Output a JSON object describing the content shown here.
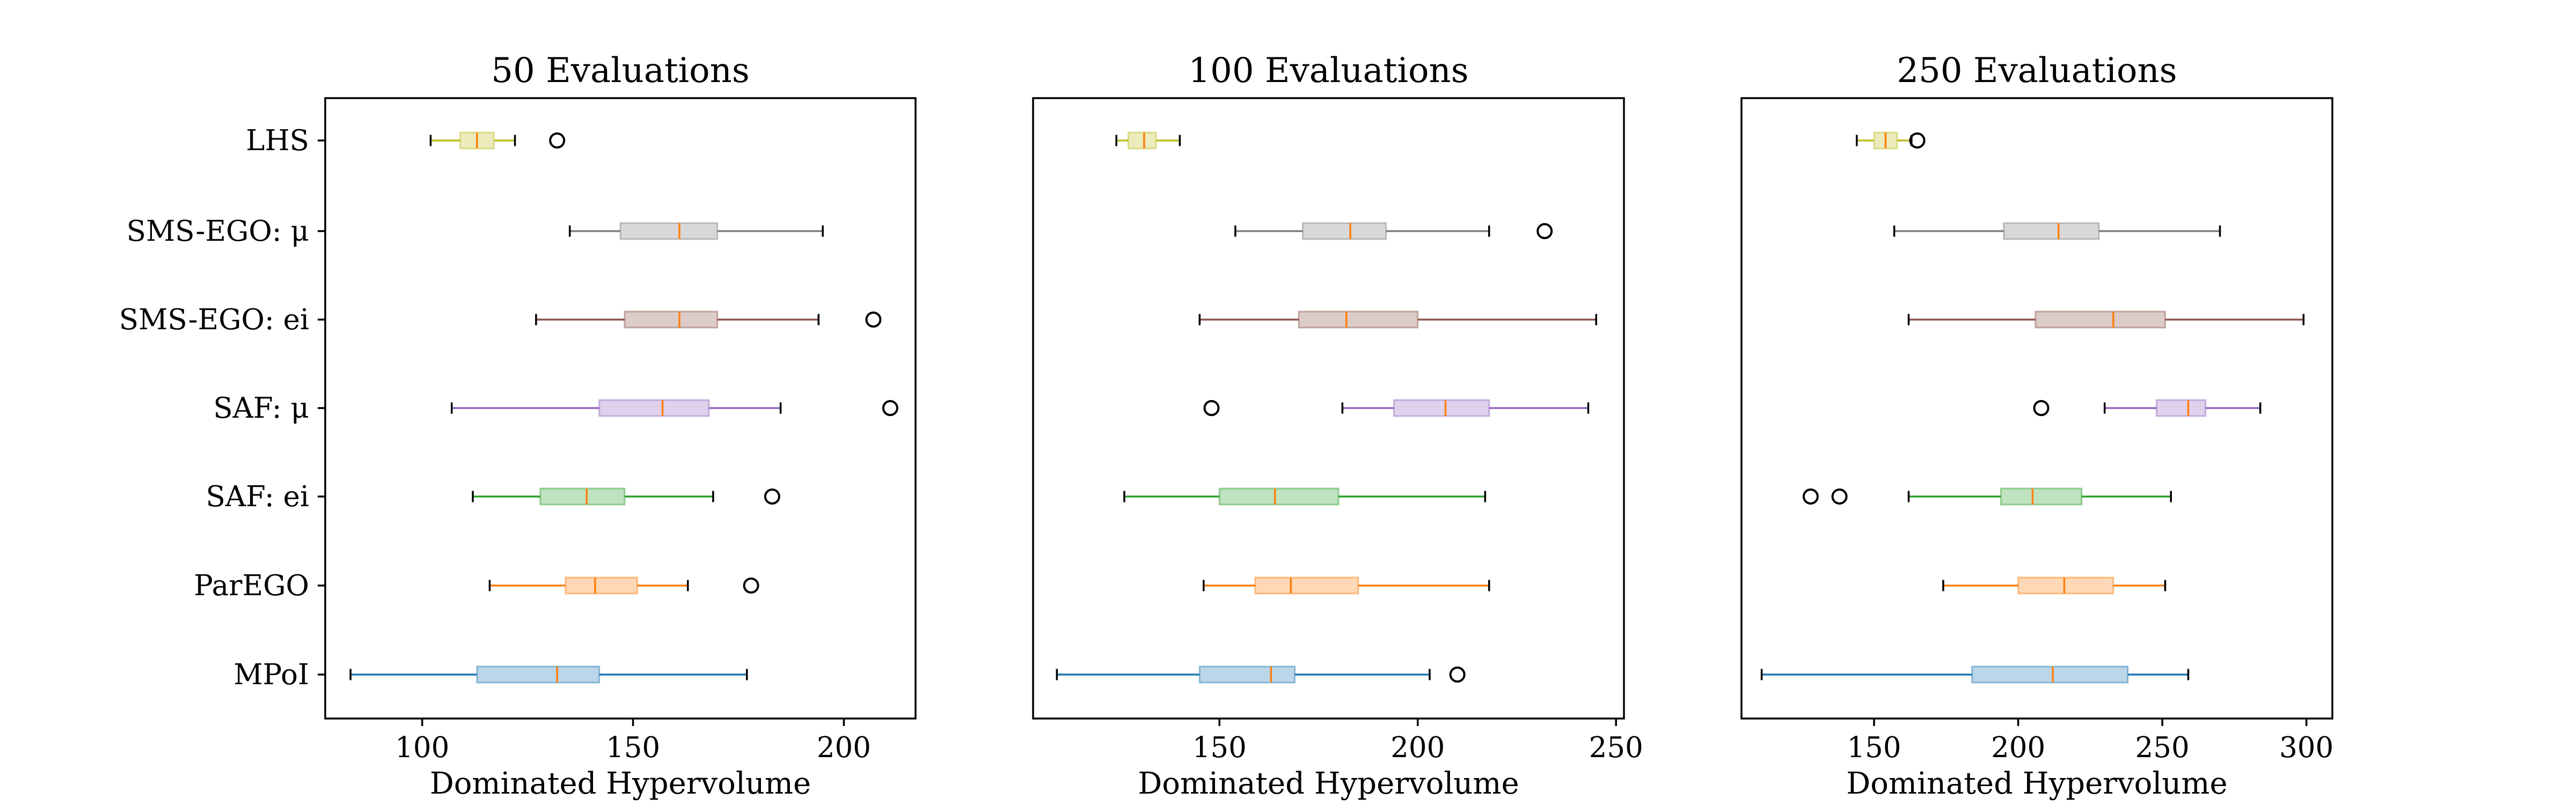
{
  "chart_data": [
    {
      "type": "boxplot",
      "title": "50 Evaluations",
      "xlabel": "Dominated Hypervolume",
      "xlim": [
        77,
        217
      ],
      "xticks": [
        "100",
        "150",
        "200"
      ],
      "xtick_values": [
        100,
        150,
        200
      ],
      "categories": [
        "LHS",
        "SMS-EGO: μ",
        "SMS-EGO: ei",
        "SAF: μ",
        "SAF: ei",
        "ParEGO",
        "MPoI"
      ],
      "boxes": [
        {
          "name": "LHS",
          "whislo": 102,
          "q1": 109,
          "med": 113,
          "q3": 117,
          "whishi": 122,
          "fliers": [
            132
          ]
        },
        {
          "name": "SMS-EGO: μ",
          "whislo": 135,
          "q1": 147,
          "med": 161,
          "q3": 170,
          "whishi": 195,
          "fliers": []
        },
        {
          "name": "SMS-EGO: ei",
          "whislo": 127,
          "q1": 148,
          "med": 161,
          "q3": 170,
          "whishi": 194,
          "fliers": [
            207
          ]
        },
        {
          "name": "SAF: μ",
          "whislo": 107,
          "q1": 142,
          "med": 157,
          "q3": 168,
          "whishi": 185,
          "fliers": [
            211
          ]
        },
        {
          "name": "SAF: ei",
          "whislo": 112,
          "q1": 128,
          "med": 139,
          "q3": 148,
          "whishi": 169,
          "fliers": [
            183
          ]
        },
        {
          "name": "ParEGO",
          "whislo": 116,
          "q1": 134,
          "med": 141,
          "q3": 151,
          "whishi": 163,
          "fliers": [
            178
          ]
        },
        {
          "name": "MPoI",
          "whislo": 83,
          "q1": 113,
          "med": 132,
          "q3": 142,
          "whishi": 177,
          "fliers": []
        }
      ]
    },
    {
      "type": "boxplot",
      "title": "100 Evaluations",
      "xlabel": "Dominated Hypervolume",
      "xlim": [
        103,
        252
      ],
      "xticks": [
        "150",
        "200",
        "250"
      ],
      "xtick_values": [
        150,
        200,
        250
      ],
      "categories": [
        "LHS",
        "SMS-EGO: μ",
        "SMS-EGO: ei",
        "SAF: μ",
        "SAF: ei",
        "ParEGO",
        "MPoI"
      ],
      "boxes": [
        {
          "name": "LHS",
          "whislo": 124,
          "q1": 127,
          "med": 131,
          "q3": 134,
          "whishi": 140,
          "fliers": []
        },
        {
          "name": "SMS-EGO: μ",
          "whislo": 154,
          "q1": 171,
          "med": 183,
          "q3": 192,
          "whishi": 218,
          "fliers": [
            232
          ]
        },
        {
          "name": "SMS-EGO: ei",
          "whislo": 145,
          "q1": 170,
          "med": 182,
          "q3": 200,
          "whishi": 245,
          "fliers": []
        },
        {
          "name": "SAF: μ",
          "whislo": 181,
          "q1": 194,
          "med": 207,
          "q3": 218,
          "whishi": 243,
          "fliers": [
            148
          ]
        },
        {
          "name": "SAF: ei",
          "whislo": 126,
          "q1": 150,
          "med": 164,
          "q3": 180,
          "whishi": 217,
          "fliers": []
        },
        {
          "name": "ParEGO",
          "whislo": 146,
          "q1": 159,
          "med": 168,
          "q3": 185,
          "whishi": 218,
          "fliers": []
        },
        {
          "name": "MPoI",
          "whislo": 109,
          "q1": 145,
          "med": 163,
          "q3": 169,
          "whishi": 203,
          "fliers": [
            210
          ]
        }
      ]
    },
    {
      "type": "boxplot",
      "title": "250 Evaluations",
      "xlabel": "Dominated Hypervolume",
      "xlim": [
        104,
        309
      ],
      "xticks": [
        "150",
        "200",
        "250",
        "300"
      ],
      "xtick_values": [
        150,
        200,
        250,
        300
      ],
      "categories": [
        "LHS",
        "SMS-EGO: μ",
        "SMS-EGO: ei",
        "SAF: μ",
        "SAF: ei",
        "ParEGO",
        "MPoI"
      ],
      "boxes": [
        {
          "name": "LHS",
          "whislo": 144,
          "q1": 150,
          "med": 154,
          "q3": 158,
          "whishi": 163,
          "fliers": [
            165
          ]
        },
        {
          "name": "SMS-EGO: μ",
          "whislo": 157,
          "q1": 195,
          "med": 214,
          "q3": 228,
          "whishi": 270,
          "fliers": []
        },
        {
          "name": "SMS-EGO: ei",
          "whislo": 162,
          "q1": 206,
          "med": 233,
          "q3": 251,
          "whishi": 299,
          "fliers": []
        },
        {
          "name": "SAF: μ",
          "whislo": 230,
          "q1": 248,
          "med": 259,
          "q3": 265,
          "whishi": 284,
          "fliers": [
            208
          ]
        },
        {
          "name": "SAF: ei",
          "whislo": 162,
          "q1": 194,
          "med": 205,
          "q3": 222,
          "whishi": 253,
          "fliers": [
            128,
            138
          ]
        },
        {
          "name": "ParEGO",
          "whislo": 174,
          "q1": 200,
          "med": 216,
          "q3": 233,
          "whishi": 251,
          "fliers": []
        },
        {
          "name": "MPoI",
          "whislo": 111,
          "q1": 184,
          "med": 212,
          "q3": 238,
          "whishi": 259,
          "fliers": []
        }
      ]
    }
  ],
  "series_colors": {
    "LHS": "#bcbd22",
    "SMS-EGO: μ": "#7f7f7f",
    "SMS-EGO: ei": "#8c564b",
    "SAF: μ": "#9467bd",
    "SAF: ei": "#2ca02c",
    "ParEGO": "#ff7f0e",
    "MPoI": "#1f77b4"
  },
  "median_color": "#ff7f0e",
  "flier_color": "#000000"
}
